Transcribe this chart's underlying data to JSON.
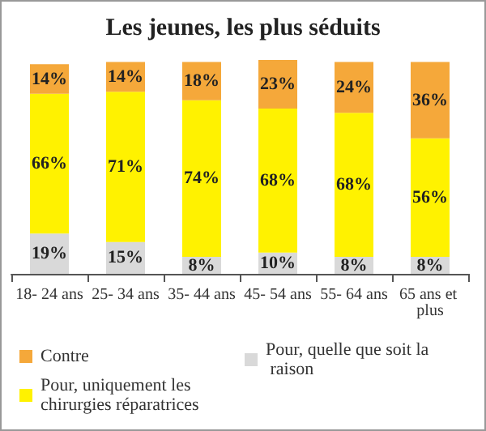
{
  "chart_data": {
    "type": "bar",
    "title": "Les jeunes, les plus séduits",
    "stacked": true,
    "legend": "bottom",
    "categories": [
      "18- 24 ans",
      "25- 34 ans",
      "35- 44 ans",
      "45- 54 ans",
      "55- 64 ans",
      "65 ans et plus"
    ],
    "series": [
      {
        "name": "Pour, quelle que soit la raison",
        "color": "#d9d9d9",
        "values": [
          19,
          15,
          8,
          10,
          8,
          8
        ],
        "value_labels": [
          "19%",
          "15%",
          "8%",
          "10%",
          "8%",
          "8%"
        ]
      },
      {
        "name": "Pour, uniquement les chirurgies réparatrices",
        "color": "#fff200",
        "values": [
          66,
          71,
          74,
          68,
          68,
          56
        ],
        "value_labels": [
          "66%",
          "71%",
          "74%",
          "68%",
          "68%",
          "56%"
        ]
      },
      {
        "name": "Contre",
        "color": "#f5a83a",
        "values": [
          14,
          14,
          18,
          23,
          24,
          36
        ],
        "value_labels": [
          "14%",
          "14%",
          "18%",
          "23%",
          "24%",
          "36%"
        ]
      }
    ]
  }
}
